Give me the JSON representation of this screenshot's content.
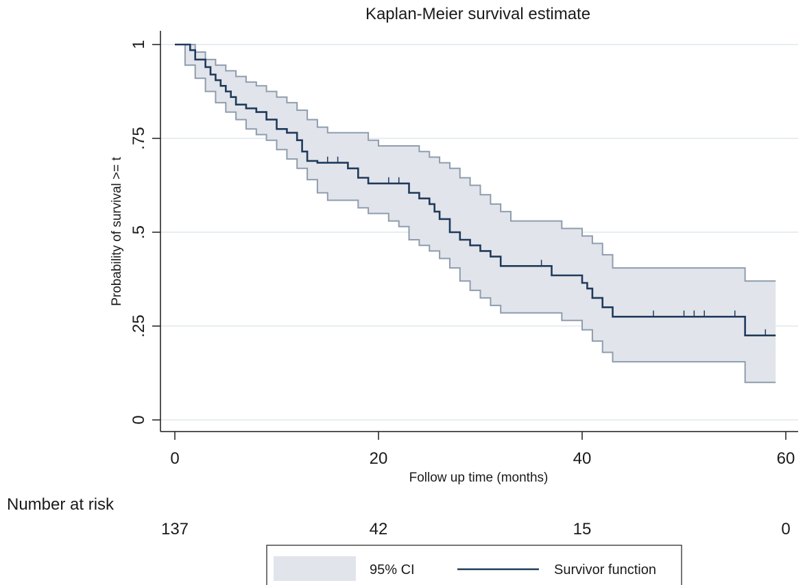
{
  "chart_data": {
    "type": "line",
    "title": "Kaplan-Meier survival estimate",
    "xlabel": "Follow up time (months)",
    "ylabel": "Probability of survival >= t",
    "xlim": [
      0,
      60
    ],
    "ylim": [
      0,
      1
    ],
    "x_ticks": [
      0,
      20,
      40,
      60
    ],
    "x_tick_labels": [
      "0",
      "20",
      "40",
      "60"
    ],
    "y_ticks": [
      0,
      0.25,
      0.5,
      0.75,
      1
    ],
    "y_tick_labels": [
      "0",
      ".25",
      ".5",
      ".75",
      "1"
    ],
    "grid": true,
    "legend_position": "bottom",
    "legend": [
      "95% CI",
      "Survivor function"
    ],
    "colors": {
      "survivor": "#1f3a5a",
      "ci_fill": "#e1e4eb",
      "ci_edge": "#8e9cad",
      "grid": "#dfe7ec"
    },
    "series": [
      {
        "name": "Survivor function",
        "steps": [
          [
            0,
            1
          ],
          [
            1,
            1
          ],
          [
            1.5,
            0.985
          ],
          [
            2,
            0.96
          ],
          [
            3,
            0.94
          ],
          [
            3.5,
            0.92
          ],
          [
            4,
            0.905
          ],
          [
            4.5,
            0.89
          ],
          [
            5,
            0.875
          ],
          [
            5.5,
            0.86
          ],
          [
            6,
            0.84
          ],
          [
            7,
            0.83
          ],
          [
            8,
            0.82
          ],
          [
            9,
            0.8
          ],
          [
            10,
            0.775
          ],
          [
            11,
            0.765
          ],
          [
            12,
            0.745
          ],
          [
            12.5,
            0.715
          ],
          [
            13,
            0.69
          ],
          [
            14,
            0.685
          ],
          [
            17,
            0.67
          ],
          [
            18,
            0.645
          ],
          [
            19,
            0.63
          ],
          [
            23,
            0.605
          ],
          [
            24,
            0.59
          ],
          [
            25,
            0.575
          ],
          [
            25.5,
            0.555
          ],
          [
            26,
            0.535
          ],
          [
            27,
            0.5
          ],
          [
            28,
            0.48
          ],
          [
            29,
            0.465
          ],
          [
            30,
            0.45
          ],
          [
            31,
            0.435
          ],
          [
            32,
            0.41
          ],
          [
            37,
            0.385
          ],
          [
            40,
            0.365
          ],
          [
            40.5,
            0.35
          ],
          [
            41,
            0.325
          ],
          [
            42,
            0.3
          ],
          [
            43,
            0.275
          ],
          [
            56,
            0.225
          ],
          [
            59,
            0.225
          ]
        ],
        "censored": [
          [
            15,
            0.685
          ],
          [
            16,
            0.685
          ],
          [
            21,
            0.63
          ],
          [
            22,
            0.63
          ],
          [
            36,
            0.41
          ],
          [
            47,
            0.275
          ],
          [
            50,
            0.275
          ],
          [
            51,
            0.275
          ],
          [
            52,
            0.275
          ],
          [
            55,
            0.275
          ],
          [
            58,
            0.225
          ]
        ]
      },
      {
        "name": "95% CI",
        "upper": [
          [
            0,
            1
          ],
          [
            1,
            1
          ],
          [
            2,
            0.98
          ],
          [
            3,
            0.96
          ],
          [
            4,
            0.945
          ],
          [
            5,
            0.93
          ],
          [
            6,
            0.915
          ],
          [
            7,
            0.9
          ],
          [
            8,
            0.89
          ],
          [
            9,
            0.875
          ],
          [
            10,
            0.86
          ],
          [
            11,
            0.845
          ],
          [
            12,
            0.825
          ],
          [
            13,
            0.8
          ],
          [
            14,
            0.78
          ],
          [
            15,
            0.765
          ],
          [
            19,
            0.745
          ],
          [
            20,
            0.73
          ],
          [
            24,
            0.715
          ],
          [
            25,
            0.7
          ],
          [
            26,
            0.685
          ],
          [
            27,
            0.67
          ],
          [
            28,
            0.645
          ],
          [
            29,
            0.625
          ],
          [
            30,
            0.6
          ],
          [
            31,
            0.575
          ],
          [
            32,
            0.555
          ],
          [
            33,
            0.53
          ],
          [
            38,
            0.51
          ],
          [
            40,
            0.49
          ],
          [
            41,
            0.47
          ],
          [
            42,
            0.44
          ],
          [
            43,
            0.405
          ],
          [
            56,
            0.37
          ],
          [
            59,
            0.37
          ]
        ],
        "lower": [
          [
            0,
            1
          ],
          [
            1,
            0.945
          ],
          [
            2,
            0.91
          ],
          [
            3,
            0.875
          ],
          [
            4,
            0.845
          ],
          [
            5,
            0.82
          ],
          [
            6,
            0.8
          ],
          [
            7,
            0.775
          ],
          [
            8,
            0.76
          ],
          [
            9,
            0.745
          ],
          [
            10,
            0.72
          ],
          [
            11,
            0.695
          ],
          [
            12,
            0.67
          ],
          [
            13,
            0.64
          ],
          [
            14,
            0.605
          ],
          [
            15,
            0.585
          ],
          [
            18,
            0.565
          ],
          [
            19,
            0.55
          ],
          [
            21,
            0.53
          ],
          [
            22,
            0.515
          ],
          [
            23,
            0.48
          ],
          [
            24,
            0.465
          ],
          [
            25,
            0.45
          ],
          [
            26,
            0.43
          ],
          [
            27,
            0.405
          ],
          [
            28,
            0.37
          ],
          [
            29,
            0.345
          ],
          [
            30,
            0.325
          ],
          [
            31,
            0.305
          ],
          [
            32,
            0.285
          ],
          [
            38,
            0.265
          ],
          [
            40,
            0.24
          ],
          [
            41,
            0.21
          ],
          [
            42,
            0.18
          ],
          [
            43,
            0.155
          ],
          [
            56,
            0.1
          ],
          [
            59,
            0.1
          ]
        ]
      }
    ]
  },
  "risk_table": {
    "label": "Number at risk",
    "values": [
      {
        "time": 0,
        "count": "137"
      },
      {
        "time": 20,
        "count": "42"
      },
      {
        "time": 40,
        "count": "15"
      },
      {
        "time": 60,
        "count": "0"
      }
    ]
  }
}
